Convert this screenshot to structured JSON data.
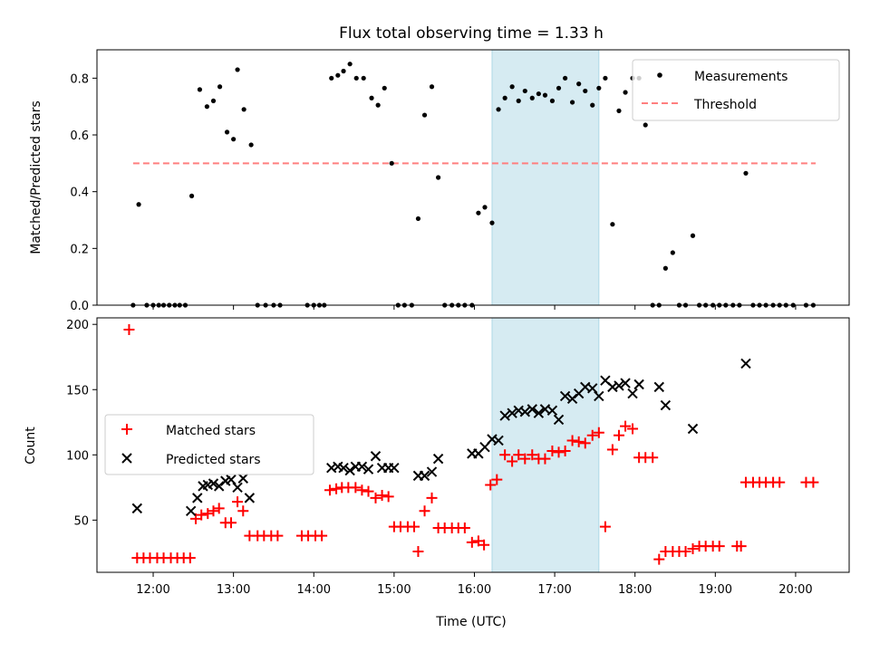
{
  "chart_data": [
    {
      "type": "scatter",
      "title": "Flux total observing time = 1.33 h",
      "ylabel": "Matched/Predicted stars",
      "xlim": [
        11.3,
        20.6667
      ],
      "ylim": [
        0,
        0.9
      ],
      "yticks": [
        0.0,
        0.2,
        0.4,
        0.6,
        0.8
      ],
      "ytick_labels": [
        "0.0",
        "0.2",
        "0.4",
        "0.6",
        "0.8"
      ],
      "shaded_span": [
        16.22,
        17.55
      ],
      "threshold": {
        "value": 0.5,
        "x_range": [
          11.75,
          20.25
        ],
        "color": "#ff7f7f",
        "label": "Threshold"
      },
      "legend": {
        "placement": "top-right",
        "entries": [
          "Measurements",
          "Threshold"
        ]
      },
      "series": [
        {
          "name": "Measurements",
          "color": "#000000",
          "marker": "dot",
          "x": [
            11.75,
            11.82,
            11.92,
            12.0,
            12.07,
            12.13,
            12.2,
            12.27,
            12.33,
            12.4,
            12.48,
            12.58,
            12.67,
            12.75,
            12.83,
            12.92,
            13.0,
            13.05,
            13.13,
            13.22,
            13.3,
            13.4,
            13.5,
            13.58,
            13.92,
            14.0,
            14.07,
            14.13,
            14.22,
            14.3,
            14.37,
            14.45,
            14.53,
            14.62,
            14.72,
            14.8,
            14.88,
            14.97,
            15.05,
            15.13,
            15.22,
            15.3,
            15.38,
            15.47,
            15.55,
            15.63,
            15.72,
            15.8,
            15.88,
            15.97,
            16.05,
            16.13,
            16.22,
            16.3,
            16.38,
            16.47,
            16.55,
            16.63,
            16.72,
            16.8,
            16.88,
            16.97,
            17.05,
            17.13,
            17.22,
            17.3,
            17.38,
            17.47,
            17.55,
            17.63,
            17.72,
            17.8,
            17.88,
            17.97,
            18.05,
            18.13,
            18.22,
            18.3,
            18.38,
            18.47,
            18.55,
            18.63,
            18.72,
            18.8,
            18.88,
            18.97,
            19.05,
            19.13,
            19.22,
            19.3,
            19.38,
            19.47,
            19.55,
            19.63,
            19.72,
            19.8,
            19.88,
            19.97,
            20.13,
            20.22
          ],
          "y": [
            0.0,
            0.355,
            0.0,
            0.0,
            0.0,
            0.0,
            0.0,
            0.0,
            0.0,
            0.0,
            0.385,
            0.76,
            0.7,
            0.72,
            0.77,
            0.61,
            0.585,
            0.83,
            0.69,
            0.565,
            0.0,
            0.0,
            0.0,
            0.0,
            0.0,
            0.0,
            0.0,
            0.0,
            0.8,
            0.81,
            0.825,
            0.85,
            0.8,
            0.8,
            0.73,
            0.705,
            0.765,
            0.5,
            0.0,
            0.0,
            0.0,
            0.305,
            0.67,
            0.77,
            0.45,
            0.0,
            0.0,
            0.0,
            0.0,
            0.0,
            0.325,
            0.345,
            0.29,
            0.69,
            0.73,
            0.77,
            0.72,
            0.755,
            0.73,
            0.745,
            0.74,
            0.72,
            0.765,
            0.8,
            0.715,
            0.78,
            0.755,
            0.705,
            0.765,
            0.8,
            0.285,
            0.685,
            0.75,
            0.8,
            0.8,
            0.635,
            0.0,
            0.0,
            0.13,
            0.185,
            0.0,
            0.0,
            0.245,
            0.0,
            0.0,
            0.0,
            0.0,
            0.0,
            0.0,
            0.0,
            0.465,
            0.0,
            0.0,
            0.0,
            0.0,
            0.0,
            0.0,
            0.0,
            0.0,
            0.0
          ]
        }
      ]
    },
    {
      "type": "scatter",
      "xlabel": "Time (UTC)",
      "ylabel": "Count",
      "xlim": [
        11.3,
        20.6667
      ],
      "ylim": [
        10,
        205
      ],
      "yticks": [
        50,
        100,
        150,
        200
      ],
      "ytick_labels": [
        "50",
        "100",
        "150",
        "200"
      ],
      "xticks": [
        12,
        13,
        14,
        15,
        16,
        17,
        18,
        19,
        20
      ],
      "xtick_labels": [
        "12:00",
        "13:00",
        "14:00",
        "15:00",
        "16:00",
        "17:00",
        "18:00",
        "19:00",
        "20:00"
      ],
      "shaded_span": [
        16.22,
        17.55
      ],
      "shade_color": "#add8e6",
      "legend": {
        "placement": "center-left",
        "entries": [
          "Matched stars",
          "Predicted stars"
        ]
      },
      "series": [
        {
          "name": "Matched stars",
          "color": "#ff0000",
          "marker": "plus",
          "x": [
            11.7,
            11.8,
            11.88,
            11.96,
            12.05,
            12.13,
            12.22,
            12.3,
            12.38,
            12.46,
            12.53,
            12.6,
            12.68,
            12.75,
            12.82,
            12.9,
            12.97,
            13.05,
            13.12,
            13.2,
            13.3,
            13.38,
            13.47,
            13.55,
            13.85,
            13.93,
            14.02,
            14.1,
            14.2,
            14.28,
            14.35,
            14.43,
            14.52,
            14.6,
            14.68,
            14.77,
            14.85,
            14.93,
            15.0,
            15.08,
            15.17,
            15.25,
            15.3,
            15.38,
            15.47,
            15.55,
            15.63,
            15.72,
            15.8,
            15.88,
            15.97,
            16.05,
            16.12,
            16.2,
            16.28,
            16.38,
            16.47,
            16.55,
            16.63,
            16.72,
            16.8,
            16.88,
            16.97,
            17.05,
            17.13,
            17.22,
            17.3,
            17.38,
            17.47,
            17.55,
            17.63,
            17.72,
            17.8,
            17.88,
            17.97,
            18.05,
            18.13,
            18.22,
            18.3,
            18.38,
            18.47,
            18.55,
            18.63,
            18.72,
            18.8,
            18.88,
            18.97,
            19.05,
            19.27,
            19.32,
            19.38,
            19.47,
            19.55,
            19.63,
            19.72,
            19.8,
            20.13,
            20.22
          ],
          "y": [
            196,
            21,
            21,
            21,
            21,
            21,
            21,
            21,
            21,
            21,
            51,
            54,
            55,
            57,
            59,
            48,
            48,
            64,
            57,
            38,
            38,
            38,
            38,
            38,
            38,
            38,
            38,
            38,
            73,
            74,
            75,
            75,
            75,
            73,
            72,
            67,
            69,
            68,
            45,
            45,
            45,
            45,
            26,
            57,
            67,
            44,
            44,
            44,
            44,
            44,
            33,
            34,
            31,
            77,
            81,
            100,
            95,
            100,
            97,
            100,
            97,
            97,
            103,
            102,
            103,
            111,
            110,
            109,
            115,
            117,
            45,
            104,
            115,
            122,
            120,
            98,
            98,
            98,
            20,
            26,
            26,
            26,
            26,
            28,
            30,
            30,
            30,
            30,
            30,
            30,
            79,
            79,
            79,
            79,
            79,
            79,
            79,
            79
          ]
        },
        {
          "name": "Predicted stars",
          "color": "#000000",
          "marker": "x",
          "x": [
            11.8,
            12.47,
            12.55,
            12.62,
            12.68,
            12.75,
            12.82,
            12.9,
            12.97,
            13.05,
            13.12,
            13.2,
            14.22,
            14.3,
            14.37,
            14.45,
            14.52,
            14.6,
            14.68,
            14.77,
            14.85,
            14.93,
            15.0,
            15.3,
            15.38,
            15.47,
            15.55,
            15.97,
            16.05,
            16.13,
            16.22,
            16.3,
            16.38,
            16.47,
            16.55,
            16.63,
            16.72,
            16.8,
            16.88,
            16.97,
            17.05,
            17.13,
            17.22,
            17.3,
            17.38,
            17.47,
            17.55,
            17.63,
            17.72,
            17.8,
            17.88,
            17.97,
            18.05,
            18.3,
            18.38,
            18.72,
            19.38
          ],
          "y": [
            59,
            57,
            67,
            76,
            77,
            78,
            76,
            80,
            81,
            75,
            82,
            67,
            90,
            91,
            90,
            88,
            91,
            91,
            89,
            99,
            90,
            90,
            90,
            84,
            84,
            87,
            97,
            101,
            101,
            106,
            112,
            111,
            130,
            132,
            134,
            133,
            135,
            132,
            135,
            134,
            127,
            145,
            143,
            147,
            152,
            151,
            145,
            157,
            152,
            153,
            155,
            147,
            154,
            152,
            138,
            120,
            170
          ]
        }
      ]
    }
  ]
}
